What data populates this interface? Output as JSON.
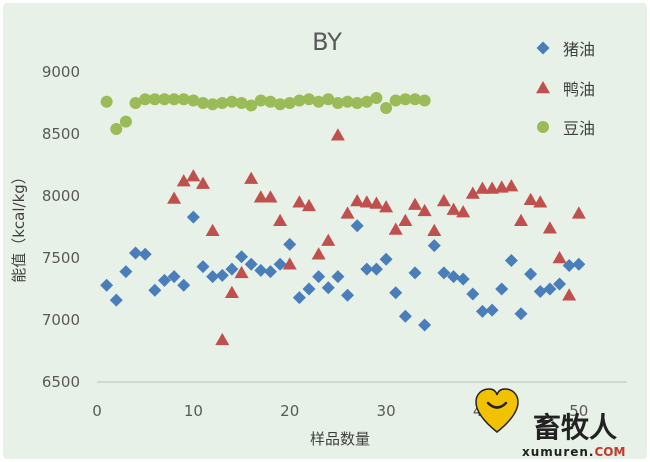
{
  "chart_data": {
    "type": "scatter",
    "title": "BY",
    "xlabel": "样品数量",
    "ylabel": "能值（kcal/kg）",
    "xlim": [
      0,
      55
    ],
    "ylim": [
      6500,
      9000
    ],
    "x_ticks": [
      0,
      10,
      20,
      30,
      40,
      50
    ],
    "y_ticks": [
      6500,
      7000,
      7500,
      8000,
      8500,
      9000
    ],
    "grid": false,
    "legend_position": "top-right",
    "series": [
      {
        "name": "猪油",
        "marker": "diamond",
        "color": "#4a7ebb",
        "points": [
          [
            1,
            7280
          ],
          [
            2,
            7160
          ],
          [
            3,
            7390
          ],
          [
            4,
            7540
          ],
          [
            5,
            7530
          ],
          [
            6,
            7240
          ],
          [
            7,
            7320
          ],
          [
            8,
            7350
          ],
          [
            9,
            7280
          ],
          [
            10,
            7830
          ],
          [
            11,
            7430
          ],
          [
            12,
            7350
          ],
          [
            13,
            7360
          ],
          [
            14,
            7410
          ],
          [
            15,
            7510
          ],
          [
            16,
            7450
          ],
          [
            17,
            7400
          ],
          [
            18,
            7390
          ],
          [
            19,
            7450
          ],
          [
            20,
            7610
          ],
          [
            21,
            7180
          ],
          [
            22,
            7250
          ],
          [
            23,
            7350
          ],
          [
            24,
            7260
          ],
          [
            25,
            7350
          ],
          [
            26,
            7200
          ],
          [
            27,
            7760
          ],
          [
            28,
            7410
          ],
          [
            29,
            7410
          ],
          [
            30,
            7490
          ],
          [
            31,
            7220
          ],
          [
            32,
            7030
          ],
          [
            33,
            7380
          ],
          [
            34,
            6960
          ],
          [
            35,
            7600
          ],
          [
            36,
            7380
          ],
          [
            37,
            7350
          ],
          [
            38,
            7330
          ],
          [
            39,
            7210
          ],
          [
            40,
            7070
          ],
          [
            41,
            7080
          ],
          [
            42,
            7250
          ],
          [
            43,
            7480
          ],
          [
            44,
            7050
          ],
          [
            45,
            7370
          ],
          [
            46,
            7230
          ],
          [
            47,
            7250
          ],
          [
            48,
            7290
          ],
          [
            49,
            7440
          ],
          [
            50,
            7450
          ]
        ]
      },
      {
        "name": "鸭油",
        "marker": "triangle",
        "color": "#c0504d",
        "points": [
          [
            8,
            7980
          ],
          [
            9,
            8120
          ],
          [
            10,
            8160
          ],
          [
            11,
            8100
          ],
          [
            12,
            7720
          ],
          [
            13,
            6840
          ],
          [
            14,
            7220
          ],
          [
            15,
            7380
          ],
          [
            16,
            8140
          ],
          [
            17,
            7990
          ],
          [
            18,
            7990
          ],
          [
            19,
            7800
          ],
          [
            20,
            7450
          ],
          [
            21,
            7950
          ],
          [
            22,
            7920
          ],
          [
            23,
            7530
          ],
          [
            24,
            7640
          ],
          [
            25,
            8490
          ],
          [
            26,
            7860
          ],
          [
            27,
            7960
          ],
          [
            28,
            7950
          ],
          [
            29,
            7940
          ],
          [
            30,
            7910
          ],
          [
            31,
            7730
          ],
          [
            32,
            7800
          ],
          [
            33,
            7930
          ],
          [
            34,
            7880
          ],
          [
            35,
            7720
          ],
          [
            36,
            7960
          ],
          [
            37,
            7890
          ],
          [
            38,
            7870
          ],
          [
            39,
            8020
          ],
          [
            40,
            8060
          ],
          [
            41,
            8060
          ],
          [
            42,
            8070
          ],
          [
            43,
            8080
          ],
          [
            44,
            7800
          ],
          [
            45,
            7970
          ],
          [
            46,
            7950
          ],
          [
            47,
            7740
          ],
          [
            48,
            7500
          ],
          [
            49,
            7200
          ],
          [
            50,
            7860
          ]
        ]
      },
      {
        "name": "豆油",
        "marker": "circle",
        "color": "#9bbb59",
        "points": [
          [
            1,
            8760
          ],
          [
            2,
            8540
          ],
          [
            3,
            8600
          ],
          [
            4,
            8750
          ],
          [
            5,
            8780
          ],
          [
            6,
            8780
          ],
          [
            7,
            8780
          ],
          [
            8,
            8780
          ],
          [
            9,
            8780
          ],
          [
            10,
            8770
          ],
          [
            11,
            8750
          ],
          [
            12,
            8740
          ],
          [
            13,
            8750
          ],
          [
            14,
            8760
          ],
          [
            15,
            8750
          ],
          [
            16,
            8730
          ],
          [
            17,
            8770
          ],
          [
            18,
            8760
          ],
          [
            19,
            8740
          ],
          [
            20,
            8750
          ],
          [
            21,
            8770
          ],
          [
            22,
            8780
          ],
          [
            23,
            8760
          ],
          [
            24,
            8780
          ],
          [
            25,
            8750
          ],
          [
            26,
            8760
          ],
          [
            27,
            8750
          ],
          [
            28,
            8760
          ],
          [
            29,
            8790
          ],
          [
            30,
            8710
          ],
          [
            31,
            8770
          ],
          [
            32,
            8780
          ],
          [
            33,
            8780
          ],
          [
            34,
            8770
          ]
        ]
      }
    ]
  },
  "watermark": {
    "brand": "畜牧人",
    "domain_main": "xumuren.",
    "domain_tld": "COM"
  }
}
